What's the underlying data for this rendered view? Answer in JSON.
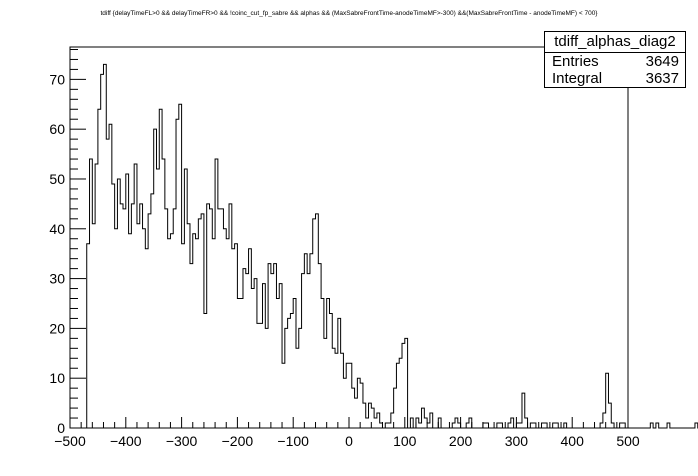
{
  "chart_data": {
    "type": "histogram",
    "title": "tdiff {delayTimeFL>0 && delayTimeFR>0 && !coinc_cut_fp_sabre && alphas && (MaxSabreFrontTime-anodeTimeMF>-300) &&(MaxSabreFrontTime - anodeTimeMF) < 700}",
    "xlabel": "",
    "ylabel": "",
    "xlim": [
      -500,
      500
    ],
    "ylim": [
      0,
      76.5
    ],
    "x_ticks": [
      -500,
      -400,
      -300,
      -200,
      -100,
      0,
      100,
      200,
      300,
      400,
      500
    ],
    "x_tick_labels": [
      "−500",
      "−400",
      "−300",
      "−200",
      "−100",
      "0",
      "100",
      "200",
      "300",
      "400",
      "500"
    ],
    "y_ticks": [
      0,
      10,
      20,
      30,
      40,
      50,
      60,
      70
    ],
    "y_tick_labels": [
      "0",
      "10",
      "20",
      "30",
      "40",
      "50",
      "60",
      "70"
    ],
    "bin_width": 5,
    "bin_start": -500,
    "values": [
      0,
      0,
      0,
      0,
      0,
      0,
      37,
      54,
      41,
      53,
      64,
      71,
      73,
      58,
      61,
      49,
      40,
      50,
      45,
      44,
      51,
      39,
      45,
      53,
      41,
      45,
      40,
      36,
      43,
      47,
      60,
      52,
      64,
      54,
      44,
      38,
      39,
      44,
      62,
      65,
      37,
      52,
      41,
      33,
      39,
      38,
      42,
      43,
      23,
      45,
      44,
      38,
      54,
      44,
      44,
      40,
      38,
      45,
      36,
      37,
      26,
      26,
      32,
      31,
      36,
      28,
      30,
      21,
      21,
      29,
      20,
      33,
      31,
      33,
      26,
      29,
      13,
      20,
      22,
      23,
      26,
      16,
      20,
      31,
      35,
      31,
      35,
      42,
      43,
      33,
      26,
      18,
      26,
      23,
      16,
      15,
      22,
      15,
      10,
      13,
      13,
      8,
      6,
      10,
      9,
      5,
      2,
      5,
      4,
      2,
      3,
      1,
      0,
      1,
      1,
      3,
      8,
      13,
      14,
      17,
      18,
      0,
      2,
      0,
      2,
      1,
      4,
      2,
      1,
      3,
      0,
      0,
      2,
      0,
      0,
      0,
      0,
      1,
      2,
      1,
      0,
      0,
      1,
      2,
      0,
      0,
      0,
      0,
      1,
      1,
      0,
      0,
      0,
      1,
      1,
      0,
      0,
      1,
      2,
      0,
      1,
      1,
      7,
      2,
      0,
      1,
      1,
      0,
      0,
      1,
      1,
      0,
      0,
      1,
      1,
      0,
      0,
      1,
      0,
      0,
      0,
      0,
      0,
      0,
      0,
      0,
      0,
      0,
      0,
      0,
      1,
      3,
      11,
      5,
      1,
      0,
      0,
      1,
      1,
      0,
      0,
      0,
      0,
      0,
      0,
      0,
      0,
      0,
      1,
      0,
      1,
      0,
      0,
      0,
      1,
      0,
      0,
      0,
      0,
      0,
      0,
      0,
      0,
      0,
      1,
      0,
      0,
      0,
      0,
      0,
      0,
      0,
      0,
      0,
      0,
      0,
      0,
      0,
      1,
      0,
      0,
      0,
      0,
      1,
      0,
      0,
      0,
      0,
      0,
      1,
      0,
      0,
      0,
      0,
      0,
      0,
      0,
      1,
      0,
      0,
      0,
      0,
      0,
      0,
      1,
      0,
      2,
      4,
      1,
      0,
      0,
      0,
      0,
      0,
      0,
      0,
      0,
      0,
      0,
      0,
      0,
      0,
      0,
      0,
      0,
      0,
      0,
      0,
      0,
      0,
      0,
      0,
      0,
      0,
      0,
      0,
      0,
      0,
      0,
      0,
      0,
      0,
      0,
      0,
      0,
      0,
      0,
      0,
      0,
      0,
      0,
      0,
      0,
      0,
      0,
      0,
      0,
      0,
      0,
      0,
      0,
      0,
      0,
      0,
      0,
      0,
      0,
      0,
      0,
      0,
      0,
      0,
      0,
      0,
      0,
      0,
      0,
      0,
      0,
      0,
      0,
      0,
      0,
      0,
      0,
      0,
      0,
      0,
      0,
      0,
      0,
      0,
      0,
      0,
      0,
      0,
      0,
      0,
      0,
      0,
      0,
      0,
      0,
      0,
      0,
      0,
      0,
      0,
      0,
      0,
      0,
      0,
      0,
      0,
      0,
      0,
      0,
      0,
      0,
      0,
      0,
      0,
      0,
      0,
      0,
      0,
      0,
      0,
      0,
      0,
      0,
      0,
      0,
      0,
      0,
      0,
      0,
      0,
      0,
      0,
      0,
      0,
      0,
      0,
      0,
      0,
      0,
      0,
      0,
      0,
      0,
      0,
      0,
      0,
      0,
      0,
      0,
      0,
      0,
      0,
      0,
      0,
      0,
      0,
      0,
      0,
      0,
      0,
      0,
      0,
      0,
      0,
      0,
      0,
      0,
      0,
      0,
      0,
      0
    ],
    "stats": {
      "name": "tdiff_alphas_diag2",
      "entries_label": "Entries",
      "entries": "3649",
      "integral_label": "Integral",
      "integral": "3637"
    },
    "grid": false,
    "legend": "top-right",
    "line_color": "#000000"
  }
}
